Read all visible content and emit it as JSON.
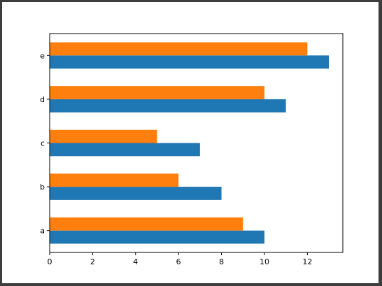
{
  "chart_data": {
    "type": "bar",
    "orientation": "horizontal",
    "categories": [
      "a",
      "b",
      "c",
      "d",
      "e"
    ],
    "series": [
      {
        "values": [
          10,
          8,
          7,
          11,
          13
        ],
        "color": "#1f77b4"
      },
      {
        "values": [
          9,
          6,
          5,
          10,
          12
        ],
        "color": "#ff7f0e"
      }
    ],
    "xticks": [
      0,
      2,
      4,
      6,
      8,
      10,
      12
    ],
    "xlim": [
      0,
      13.65
    ],
    "title": "",
    "xlabel": "",
    "ylabel": "",
    "grid": false,
    "legend": "none"
  }
}
